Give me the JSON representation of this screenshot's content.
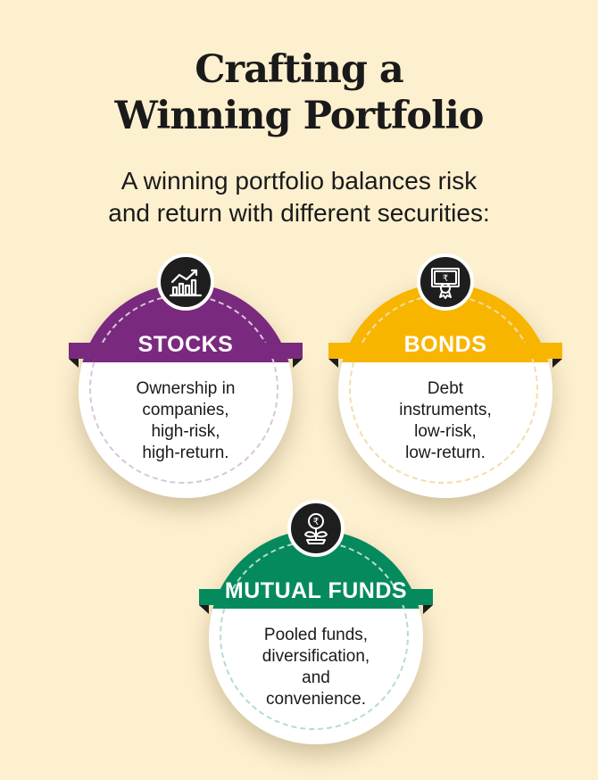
{
  "title": {
    "line1": "Crafting a",
    "line2": "Winning Portfolio"
  },
  "subtitle": {
    "line1": "A winning portfolio balances risk",
    "line2": "and return with different securities:"
  },
  "cards": [
    {
      "label": "STOCKS",
      "icon": "chart-growth-icon",
      "color": "#7a2a7e",
      "dash_color": "#d9c5dc",
      "lines": [
        "Ownership in",
        "companies,",
        "high-risk,",
        "high-return."
      ]
    },
    {
      "label": "BONDS",
      "icon": "bond-certificate-icon",
      "color": "#f7b500",
      "dash_color": "#f3ddaa",
      "lines": [
        "Debt",
        "instruments,",
        "low-risk,",
        "low-return."
      ]
    },
    {
      "label": "MUTUAL FUNDS",
      "icon": "rupee-plant-icon",
      "color": "#058a5e",
      "dash_color": "#b6dccd",
      "lines": [
        "Pooled funds,",
        "diversification,",
        "and",
        "convenience."
      ]
    }
  ]
}
